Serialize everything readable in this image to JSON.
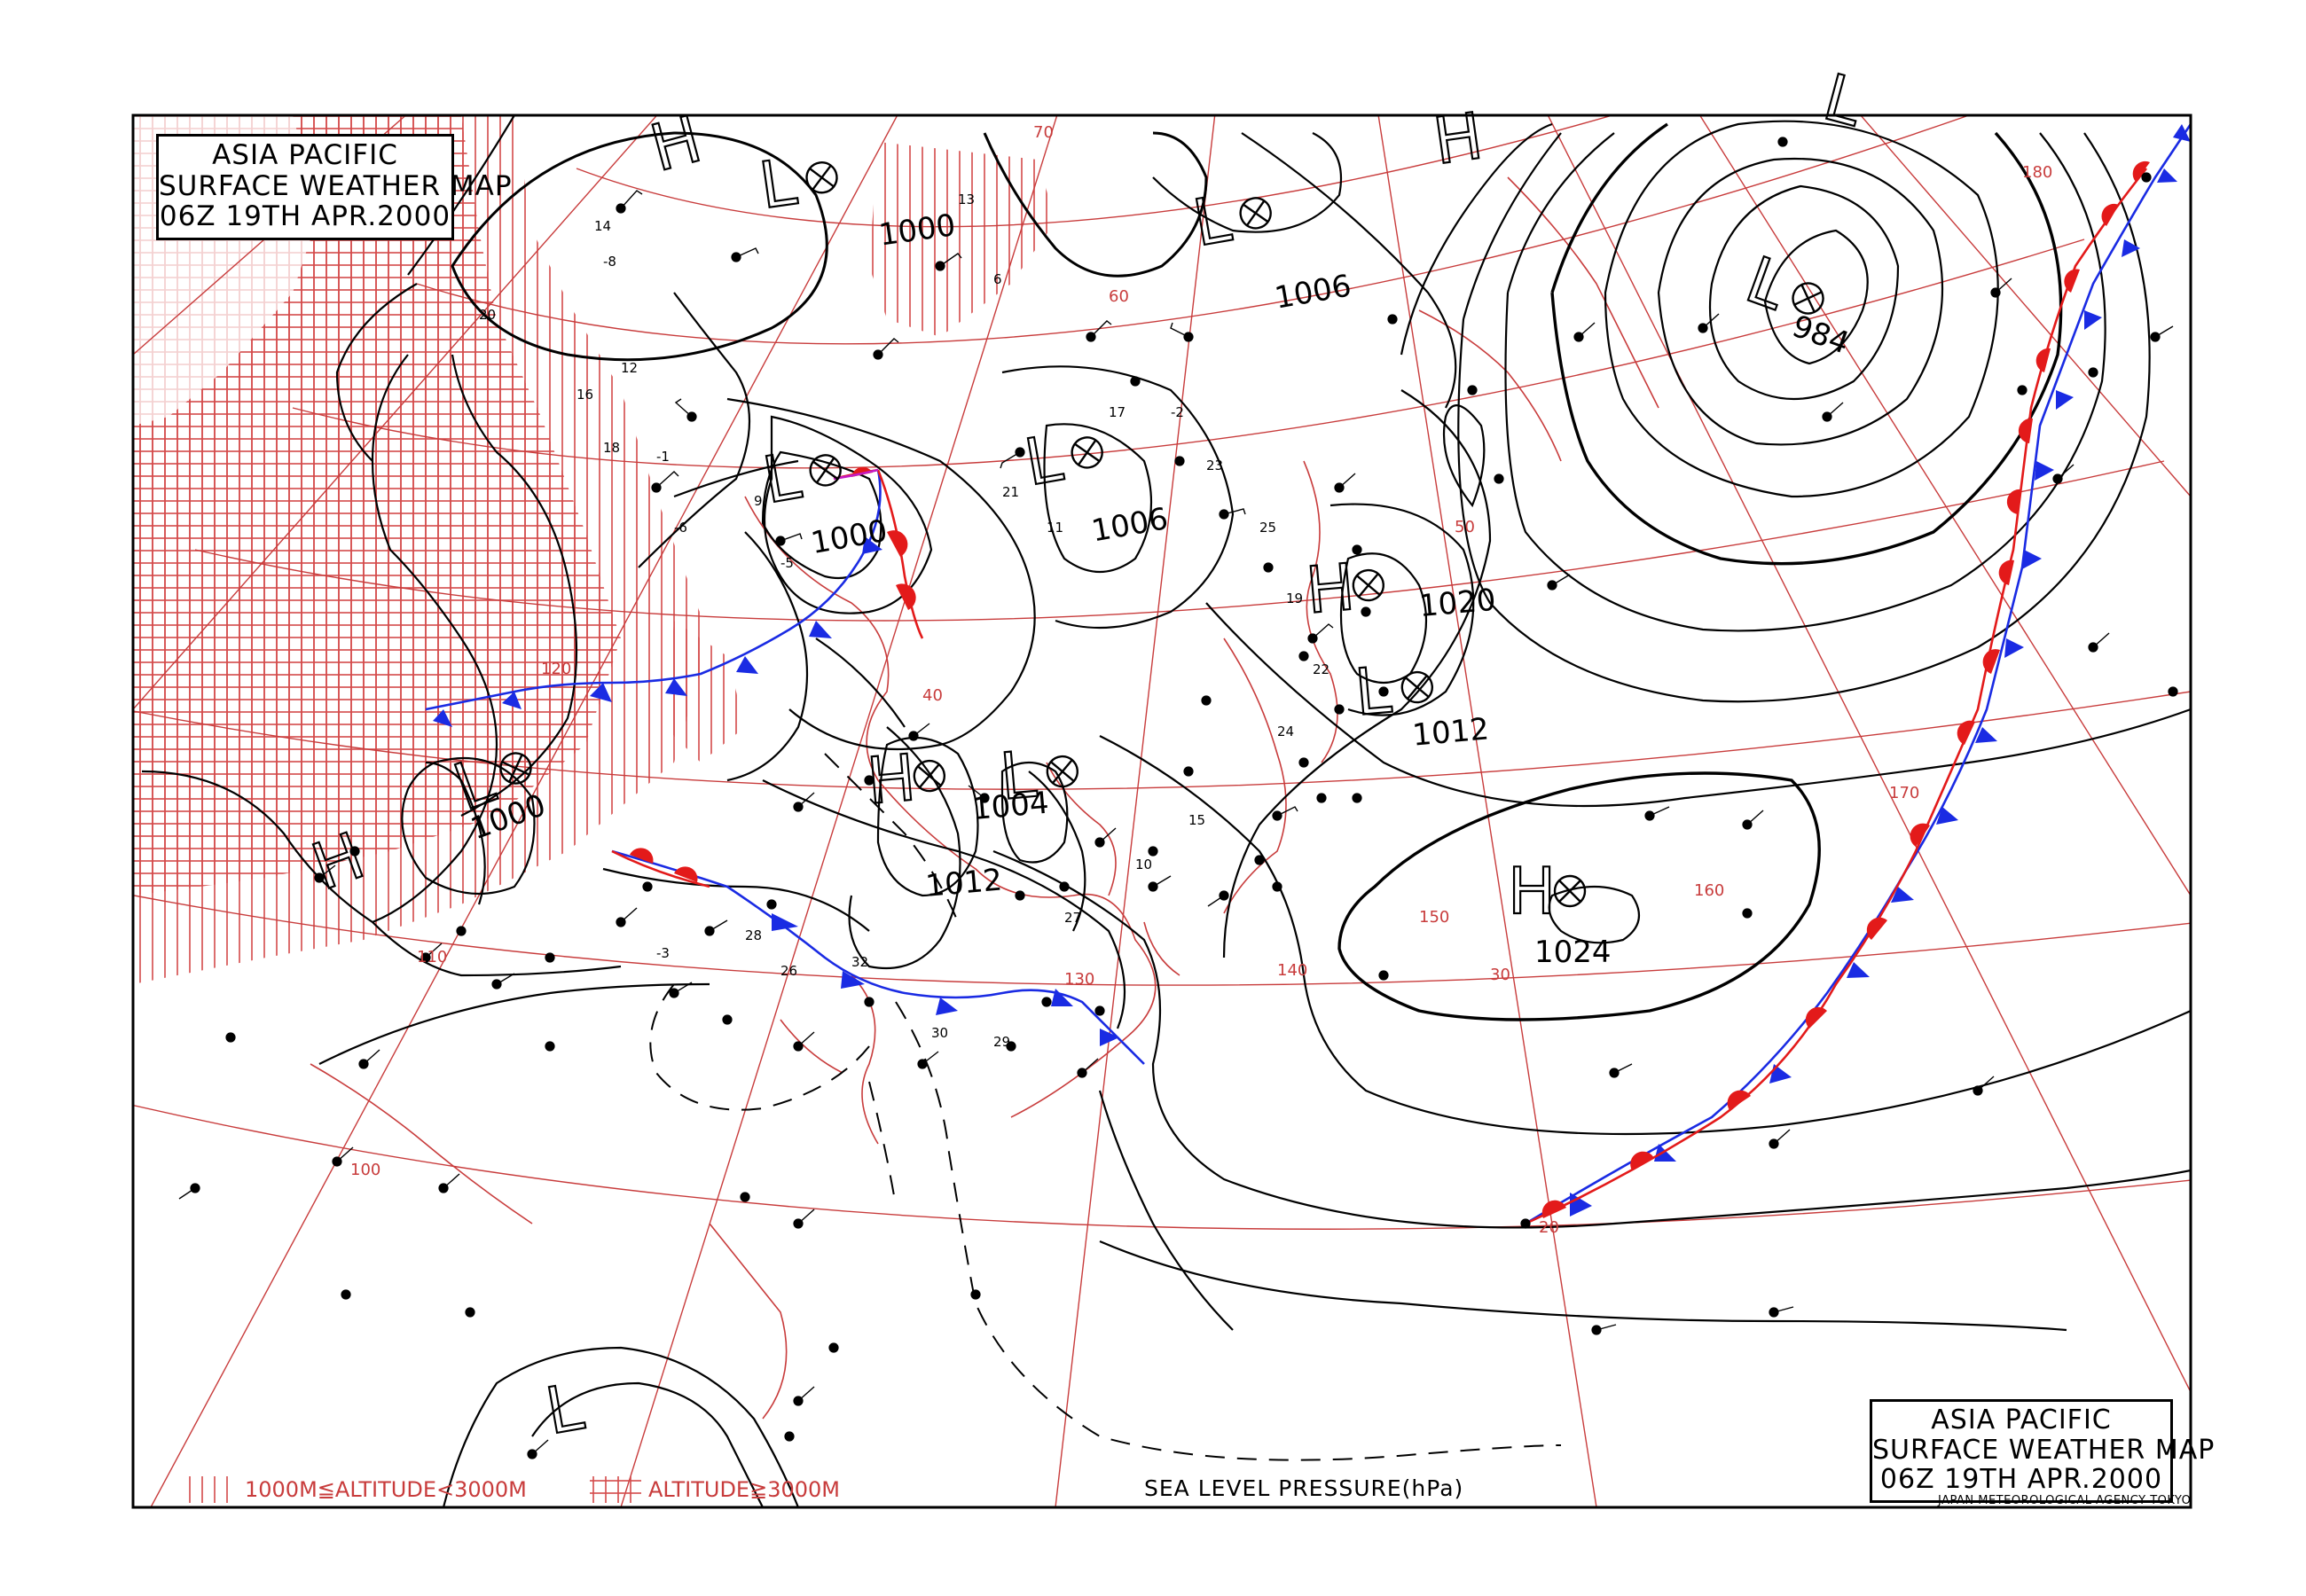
{
  "title": {
    "line1": "ASIA PACIFIC",
    "line2": "SURFACE WEATHER MAP",
    "line3": "06Z 19TH APR.2000"
  },
  "legend": {
    "low_altitude": "1000M≦ALTITUDE<3000M",
    "high_altitude": "ALTITUDE≧3000M"
  },
  "caption": "SEA LEVEL PRESSURE(hPa)",
  "agency": "JAPAN METEOROLOGICAL AGENCY TOKYO",
  "colors": {
    "isobar": "#000000",
    "grid": "#c83c3c",
    "terrain_hatch": "#d44a4a",
    "warm_front": "#e31a1a",
    "cold_front": "#1a2be3"
  },
  "pressure_systems": [
    {
      "type": "L",
      "value": "1000",
      "label": "Low north of Mongolia"
    },
    {
      "type": "L",
      "value": "1000",
      "label": "Low over NE China"
    },
    {
      "type": "L",
      "value": "1000",
      "label": "Low over W China"
    },
    {
      "type": "L",
      "value": "1006",
      "label": "Low over Okhotsk"
    },
    {
      "type": "L",
      "value": "1006",
      "label": "Low over Manchuria"
    },
    {
      "type": "L",
      "value": "1004",
      "label": "Low over Korea"
    },
    {
      "type": "H",
      "value": "1012",
      "label": "High over Yellow Sea"
    },
    {
      "type": "H",
      "value": "1020",
      "label": "High over Hokkaido"
    },
    {
      "type": "L",
      "value": "1012",
      "label": "Low east of Japan"
    },
    {
      "type": "H",
      "value": "1024",
      "label": "High over North Pacific"
    },
    {
      "type": "L",
      "value": "984",
      "label": "Low over Bering Sea"
    },
    {
      "type": "H",
      "value": "",
      "label": "High over Tibet"
    },
    {
      "type": "H",
      "value": "",
      "label": "High over Siberia"
    },
    {
      "type": "H",
      "value": "",
      "label": "High over East Siberia"
    },
    {
      "type": "L",
      "value": "",
      "label": "Low over South China Sea"
    },
    {
      "type": "L",
      "value": "",
      "label": "Low over Alaska"
    }
  ],
  "grid_labels": {
    "longitudes": [
      "100",
      "110",
      "120",
      "130",
      "140",
      "150",
      "160",
      "170",
      "180"
    ],
    "latitudes": [
      "20",
      "30",
      "40",
      "50",
      "60",
      "70"
    ]
  },
  "station_values": [
    "14",
    "-8",
    "20",
    "16",
    "12",
    "18",
    "-1",
    "-6",
    "9",
    "-5",
    "13",
    "6",
    "21",
    "11",
    "17",
    "-2",
    "23",
    "25",
    "19",
    "22",
    "24",
    "15",
    "10",
    "27",
    "29",
    "30",
    "32",
    "26",
    "28",
    "-3"
  ]
}
